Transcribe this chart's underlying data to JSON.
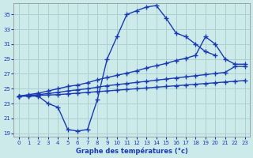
{
  "title": "Graphe des températures (°c)",
  "bg_color": "#cceaea",
  "grid_color": "#aad0d0",
  "line_color": "#1a3ab0",
  "yticks": [
    19,
    21,
    23,
    25,
    27,
    29,
    31,
    33,
    35
  ],
  "xticks": [
    0,
    1,
    2,
    3,
    4,
    5,
    6,
    7,
    8,
    9,
    10,
    11,
    12,
    13,
    14,
    15,
    16,
    17,
    18,
    19,
    20,
    21,
    22,
    23
  ],
  "hours_main": [
    0,
    1,
    2,
    3,
    4,
    5,
    6,
    7,
    8,
    9,
    10,
    11,
    12,
    13,
    14,
    15,
    16,
    17,
    18,
    19,
    20
  ],
  "temps_main": [
    24,
    24,
    24,
    23,
    22.5,
    19.5,
    19.3,
    19.5,
    23.5,
    29,
    32,
    35,
    35.5,
    36,
    36.2,
    34.5,
    32.5,
    32,
    31,
    30,
    29.5
  ],
  "hours_upper": [
    0,
    1,
    2,
    3,
    4,
    5,
    6,
    7,
    8,
    9,
    10,
    11,
    12,
    13,
    14,
    15,
    16,
    17,
    18,
    19,
    20,
    21,
    22,
    23
  ],
  "temps_upper": [
    24,
    24.2,
    24.4,
    24.7,
    25.0,
    25.3,
    25.5,
    25.8,
    26.2,
    26.5,
    26.8,
    27.1,
    27.4,
    27.8,
    28.1,
    28.4,
    28.8,
    29.1,
    29.5,
    32,
    31,
    29,
    28.3,
    28.3
  ],
  "hours_mid": [
    0,
    1,
    2,
    3,
    4,
    5,
    6,
    7,
    8,
    9,
    10,
    11,
    12,
    13,
    14,
    15,
    16,
    17,
    18,
    19,
    20,
    21,
    22,
    23
  ],
  "temps_mid": [
    24,
    24.1,
    24.2,
    24.35,
    24.5,
    24.7,
    24.85,
    25.0,
    25.2,
    25.4,
    25.55,
    25.7,
    25.85,
    26.0,
    26.15,
    26.3,
    26.45,
    26.6,
    26.75,
    26.9,
    27.05,
    27.2,
    28.0,
    28.0
  ],
  "hours_low": [
    0,
    1,
    2,
    3,
    4,
    5,
    6,
    7,
    8,
    9,
    10,
    11,
    12,
    13,
    14,
    15,
    16,
    17,
    18,
    19,
    20,
    21,
    22,
    23
  ],
  "temps_low": [
    24,
    24.05,
    24.1,
    24.15,
    24.2,
    24.3,
    24.4,
    24.5,
    24.6,
    24.7,
    24.8,
    24.9,
    25.0,
    25.1,
    25.2,
    25.3,
    25.4,
    25.5,
    25.6,
    25.7,
    25.8,
    25.9,
    26.0,
    26.1
  ]
}
